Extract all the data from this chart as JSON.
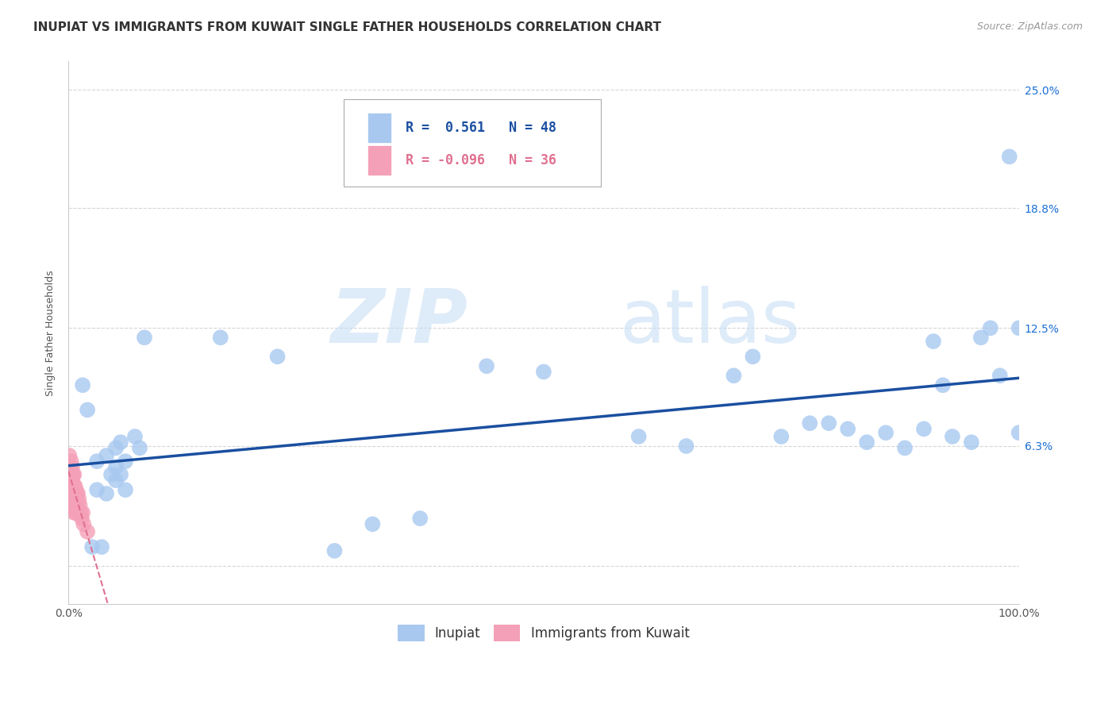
{
  "title": "INUPIAT VS IMMIGRANTS FROM KUWAIT SINGLE FATHER HOUSEHOLDS CORRELATION CHART",
  "source": "Source: ZipAtlas.com",
  "ylabel": "Single Father Households",
  "xlabel": "",
  "inupiat_R": 0.561,
  "inupiat_N": 48,
  "kuwait_R": -0.096,
  "kuwait_N": 36,
  "inupiat_color": "#a8c8f0",
  "kuwait_color": "#f4a0b8",
  "inupiat_line_color": "#1a4fa0",
  "kuwait_line_color": "#e07090",
  "background_color": "#ffffff",
  "watermark_zip": "ZIP",
  "watermark_atlas": "atlas",
  "xlim": [
    0.0,
    1.0
  ],
  "ylim": [
    -0.02,
    0.265
  ],
  "yticks": [
    0.0,
    0.063,
    0.125,
    0.188,
    0.25
  ],
  "ytick_labels": [
    "",
    "6.3%",
    "12.5%",
    "18.8%",
    "25.0%"
  ],
  "inupiat_x": [
    0.015,
    0.02,
    0.025,
    0.03,
    0.03,
    0.035,
    0.04,
    0.04,
    0.045,
    0.05,
    0.05,
    0.05,
    0.055,
    0.055,
    0.06,
    0.06,
    0.07,
    0.075,
    0.08,
    0.16,
    0.22,
    0.28,
    0.32,
    0.37,
    0.44,
    0.5,
    0.6,
    0.65,
    0.7,
    0.72,
    0.75,
    0.78,
    0.8,
    0.82,
    0.84,
    0.86,
    0.88,
    0.9,
    0.91,
    0.92,
    0.93,
    0.95,
    0.96,
    0.97,
    0.98,
    0.99,
    1.0,
    1.0
  ],
  "inupiat_y": [
    0.095,
    0.082,
    0.01,
    0.055,
    0.04,
    0.01,
    0.058,
    0.038,
    0.048,
    0.052,
    0.045,
    0.062,
    0.065,
    0.048,
    0.055,
    0.04,
    0.068,
    0.062,
    0.12,
    0.12,
    0.11,
    0.008,
    0.022,
    0.025,
    0.105,
    0.102,
    0.068,
    0.063,
    0.1,
    0.11,
    0.068,
    0.075,
    0.075,
    0.072,
    0.065,
    0.07,
    0.062,
    0.072,
    0.118,
    0.095,
    0.068,
    0.065,
    0.12,
    0.125,
    0.1,
    0.215,
    0.125,
    0.07
  ],
  "kuwait_x": [
    0.001,
    0.002,
    0.002,
    0.003,
    0.003,
    0.003,
    0.004,
    0.004,
    0.004,
    0.004,
    0.005,
    0.005,
    0.005,
    0.005,
    0.006,
    0.006,
    0.006,
    0.006,
    0.006,
    0.007,
    0.007,
    0.007,
    0.008,
    0.008,
    0.008,
    0.009,
    0.009,
    0.01,
    0.01,
    0.011,
    0.012,
    0.013,
    0.014,
    0.015,
    0.016,
    0.02
  ],
  "kuwait_y": [
    0.058,
    0.042,
    0.05,
    0.048,
    0.055,
    0.038,
    0.052,
    0.046,
    0.04,
    0.035,
    0.048,
    0.042,
    0.038,
    0.032,
    0.048,
    0.042,
    0.038,
    0.032,
    0.028,
    0.042,
    0.038,
    0.03,
    0.04,
    0.035,
    0.028,
    0.038,
    0.032,
    0.038,
    0.03,
    0.035,
    0.032,
    0.028,
    0.025,
    0.028,
    0.022,
    0.018
  ],
  "title_fontsize": 11,
  "axis_label_fontsize": 9,
  "tick_fontsize": 10,
  "legend_fontsize": 12
}
